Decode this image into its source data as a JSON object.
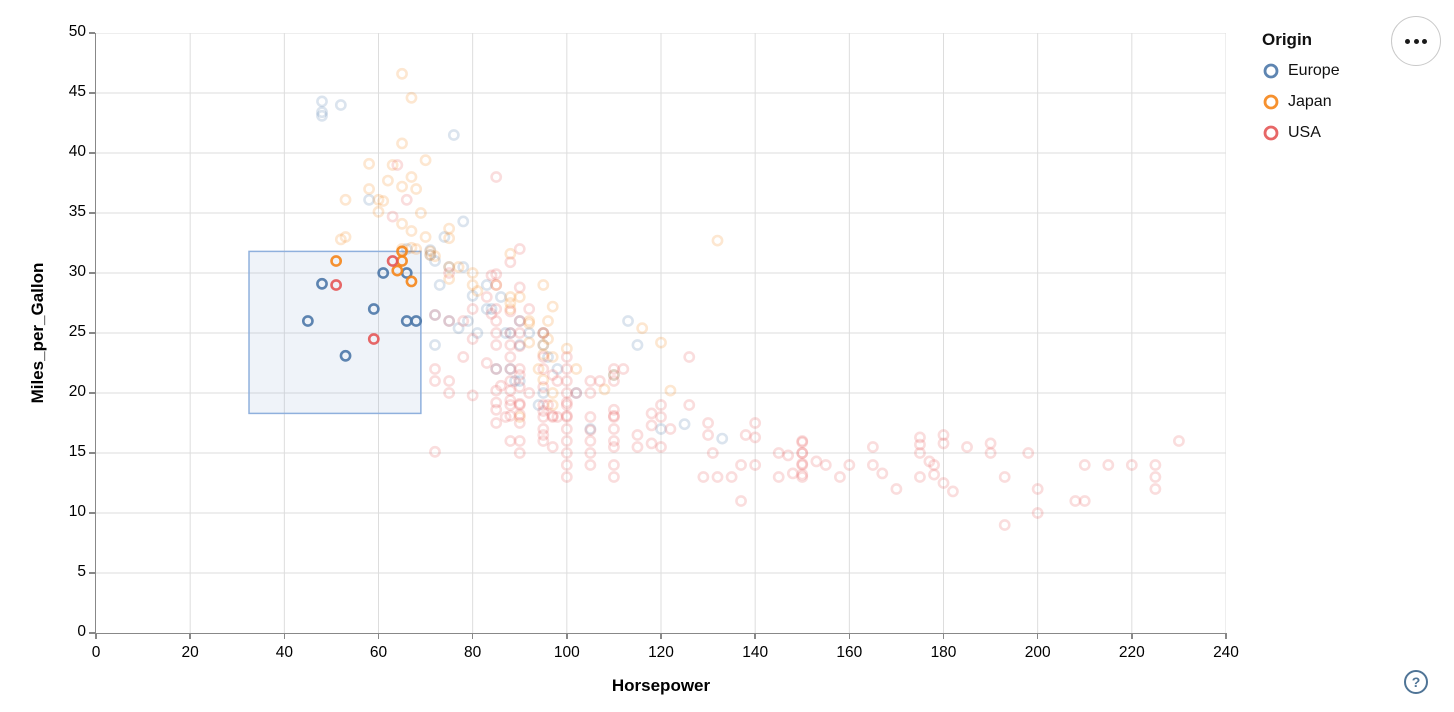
{
  "controls": {
    "menu_button": "options-menu",
    "help_button": "?"
  },
  "chart_data": {
    "type": "scatter",
    "title": "",
    "xlabel": "Horsepower",
    "ylabel": "Miles_per_Gallon",
    "x_domain": [
      0,
      240
    ],
    "y_domain": [
      0,
      50
    ],
    "x_ticks": [
      0,
      20,
      40,
      60,
      80,
      100,
      120,
      140,
      160,
      180,
      200,
      220,
      240
    ],
    "y_ticks": [
      0,
      5,
      10,
      15,
      20,
      25,
      30,
      35,
      40,
      45,
      50
    ],
    "grid": true,
    "legend": {
      "title": "Origin",
      "position": "top-right",
      "entries": [
        {
          "label": "Europe",
          "color": "#4c78a8"
        },
        {
          "label": "Japan",
          "color": "#f58518"
        },
        {
          "label": "USA",
          "color": "#e45756"
        }
      ]
    },
    "brush": {
      "x": [
        32.5,
        69
      ],
      "y": [
        18.3,
        31.8
      ],
      "fill": "#7d9fd0",
      "fill_opacity": 0.12,
      "stroke": "#8fb0dd"
    },
    "point_style": {
      "faded_opacity": 0.2,
      "selected_opacity": 0.9,
      "radius": 4.6,
      "stroke_width": 2.6
    },
    "series": [
      {
        "name": "Europe",
        "color": "#4c78a8",
        "selected_points": [
          [
            45,
            26
          ],
          [
            48,
            29.1
          ],
          [
            53,
            23.1
          ],
          [
            59,
            27
          ],
          [
            61,
            30
          ],
          [
            66,
            30
          ],
          [
            66,
            26
          ],
          [
            68,
            26
          ]
        ],
        "points": [
          [
            48,
            44.3
          ],
          [
            48,
            43.4
          ],
          [
            48,
            43.1
          ],
          [
            52,
            44
          ],
          [
            76,
            41.5
          ],
          [
            58,
            36.1
          ],
          [
            66,
            32
          ],
          [
            71,
            31.5
          ],
          [
            71,
            31.9
          ],
          [
            72,
            31
          ],
          [
            78,
            34.3
          ],
          [
            78,
            30.5
          ],
          [
            74,
            33
          ],
          [
            75,
            30.5
          ],
          [
            77,
            25.4
          ],
          [
            80,
            28.1
          ],
          [
            83,
            29
          ],
          [
            83,
            27
          ],
          [
            86,
            28
          ],
          [
            87,
            25
          ],
          [
            88,
            25
          ],
          [
            88,
            22
          ],
          [
            90,
            24
          ],
          [
            90,
            26
          ],
          [
            90,
            21
          ],
          [
            92,
            25
          ],
          [
            95,
            25
          ],
          [
            95,
            24
          ],
          [
            95,
            20
          ],
          [
            96,
            23
          ],
          [
            98,
            22
          ],
          [
            102,
            20
          ],
          [
            105,
            17
          ],
          [
            110,
            21.5
          ],
          [
            113,
            26
          ],
          [
            115,
            24
          ],
          [
            120,
            17
          ],
          [
            125,
            17.4
          ],
          [
            133,
            16.2
          ],
          [
            72,
            26.5
          ],
          [
            72,
            24
          ],
          [
            73,
            29
          ],
          [
            75,
            26
          ],
          [
            79,
            26
          ],
          [
            81,
            25
          ],
          [
            84,
            27
          ],
          [
            85,
            22
          ],
          [
            89,
            21
          ],
          [
            94,
            19
          ]
        ]
      },
      {
        "name": "Japan",
        "color": "#f58518",
        "selected_points": [
          [
            51,
            31
          ],
          [
            65,
            31.8
          ],
          [
            65,
            31
          ],
          [
            64,
            30.2
          ],
          [
            67,
            29.3
          ]
        ],
        "points": [
          [
            65,
            46.6
          ],
          [
            67,
            44.6
          ],
          [
            65,
            40.8
          ],
          [
            70,
            39.4
          ],
          [
            58,
            39.1
          ],
          [
            63,
            39
          ],
          [
            67,
            38
          ],
          [
            62,
            37.7
          ],
          [
            68,
            37
          ],
          [
            65,
            37.2
          ],
          [
            53,
            36.1
          ],
          [
            60,
            36.1
          ],
          [
            58,
            37
          ],
          [
            61,
            36
          ],
          [
            75,
            33.7
          ],
          [
            60,
            35.1
          ],
          [
            65,
            34.1
          ],
          [
            67,
            33.5
          ],
          [
            53,
            33
          ],
          [
            65,
            32
          ],
          [
            69,
            35
          ],
          [
            52,
            32.8
          ],
          [
            70,
            33
          ],
          [
            75,
            32.9
          ],
          [
            71,
            31.8
          ],
          [
            67,
            32.1
          ],
          [
            71,
            31.5
          ],
          [
            72,
            31.4
          ],
          [
            68,
            32
          ],
          [
            88,
            27
          ],
          [
            88,
            27.5
          ],
          [
            88,
            28
          ],
          [
            90,
            28
          ],
          [
            92,
            26
          ],
          [
            92,
            25.8
          ],
          [
            92,
            24.2
          ],
          [
            94,
            22
          ],
          [
            95,
            24
          ],
          [
            95,
            25
          ],
          [
            95,
            23.2
          ],
          [
            96,
            24.5
          ],
          [
            96,
            26
          ],
          [
            97,
            23
          ],
          [
            97,
            27.2
          ],
          [
            97,
            19
          ],
          [
            90,
            18
          ],
          [
            100,
            23.7
          ],
          [
            110,
            21.5
          ],
          [
            116,
            25.4
          ],
          [
            120,
            24.2
          ],
          [
            122,
            20.2
          ],
          [
            132,
            32.7
          ],
          [
            75,
            29.5
          ],
          [
            75,
            30.5
          ],
          [
            77,
            30.5
          ],
          [
            80,
            29
          ],
          [
            80,
            30
          ],
          [
            81,
            28.5
          ],
          [
            85,
            29
          ],
          [
            88,
            31.6
          ],
          [
            95,
            21.1
          ],
          [
            97,
            20
          ],
          [
            108,
            20.3
          ],
          [
            95,
            29
          ],
          [
            102,
            22
          ]
        ]
      },
      {
        "name": "USA",
        "color": "#e45756",
        "selected_points": [
          [
            51,
            29
          ],
          [
            63,
            31
          ],
          [
            59,
            24.5
          ]
        ],
        "points": [
          [
            85,
            38
          ],
          [
            63,
            34.7
          ],
          [
            66,
            36.1
          ],
          [
            64,
            39
          ],
          [
            90,
            32
          ],
          [
            88,
            30.9
          ],
          [
            85,
            29.9
          ],
          [
            90,
            28.8
          ],
          [
            84,
            29.8
          ],
          [
            75,
            30
          ],
          [
            72,
            26.5
          ],
          [
            75,
            26
          ],
          [
            78,
            26
          ],
          [
            80,
            27
          ],
          [
            83,
            28
          ],
          [
            85,
            25
          ],
          [
            85,
            26
          ],
          [
            85,
            27
          ],
          [
            85,
            29
          ],
          [
            88,
            25
          ],
          [
            88,
            26.8
          ],
          [
            90,
            25
          ],
          [
            90,
            26
          ],
          [
            92,
            27
          ],
          [
            95,
            25
          ],
          [
            84,
            26.6
          ],
          [
            72,
            21
          ],
          [
            72,
            22
          ],
          [
            75,
            20
          ],
          [
            75,
            21
          ],
          [
            78,
            23
          ],
          [
            80,
            19.8
          ],
          [
            80,
            24.5
          ],
          [
            83,
            22.5
          ],
          [
            85,
            20.2
          ],
          [
            85,
            22
          ],
          [
            85,
            24
          ],
          [
            86,
            20.6
          ],
          [
            88,
            20.2
          ],
          [
            88,
            21
          ],
          [
            88,
            22
          ],
          [
            88,
            23
          ],
          [
            88,
            24
          ],
          [
            90,
            20.5
          ],
          [
            90,
            21.5
          ],
          [
            90,
            22
          ],
          [
            90,
            23.9
          ],
          [
            92,
            20
          ],
          [
            95,
            20.5
          ],
          [
            95,
            22
          ],
          [
            95,
            23
          ],
          [
            97,
            21.5
          ],
          [
            98,
            21
          ],
          [
            100,
            20
          ],
          [
            100,
            21
          ],
          [
            100,
            22
          ],
          [
            100,
            23
          ],
          [
            102,
            20
          ],
          [
            105,
            20
          ],
          [
            105,
            21
          ],
          [
            107,
            21
          ],
          [
            110,
            21
          ],
          [
            110,
            22
          ],
          [
            112,
            22
          ],
          [
            126,
            23
          ],
          [
            85,
            18.6
          ],
          [
            85,
            19.2
          ],
          [
            87,
            18
          ],
          [
            88,
            18.1
          ],
          [
            88,
            19
          ],
          [
            88,
            19.4
          ],
          [
            90,
            18.2
          ],
          [
            90,
            19
          ],
          [
            90,
            19.1
          ],
          [
            95,
            18
          ],
          [
            95,
            18.5
          ],
          [
            95,
            19
          ],
          [
            96,
            19
          ],
          [
            97,
            18
          ],
          [
            97,
            18.1
          ],
          [
            98,
            18
          ],
          [
            100,
            18
          ],
          [
            100,
            18.1
          ],
          [
            100,
            19
          ],
          [
            100,
            19.2
          ],
          [
            105,
            18
          ],
          [
            110,
            18
          ],
          [
            110,
            18.1
          ],
          [
            110,
            18.6
          ],
          [
            118,
            18.3
          ],
          [
            120,
            18
          ],
          [
            120,
            19
          ],
          [
            126,
            19
          ],
          [
            88,
            16
          ],
          [
            90,
            15
          ],
          [
            90,
            16
          ],
          [
            90,
            17.5
          ],
          [
            85,
            17.5
          ],
          [
            95,
            16
          ],
          [
            95,
            16.5
          ],
          [
            95,
            17
          ],
          [
            97,
            15.5
          ],
          [
            100,
            15
          ],
          [
            100,
            16
          ],
          [
            100,
            17
          ],
          [
            105,
            15
          ],
          [
            105,
            16
          ],
          [
            105,
            16.9
          ],
          [
            110,
            15.5
          ],
          [
            110,
            16
          ],
          [
            110,
            17
          ],
          [
            115,
            15.5
          ],
          [
            115,
            16.5
          ],
          [
            118,
            17.3
          ],
          [
            118,
            15.8
          ],
          [
            120,
            15.5
          ],
          [
            122,
            17
          ],
          [
            130,
            17.5
          ],
          [
            72,
            15.1
          ],
          [
            130,
            16.5
          ],
          [
            138,
            16.5
          ],
          [
            140,
            16.3
          ],
          [
            140,
            17.5
          ],
          [
            100,
            14
          ],
          [
            100,
            13
          ],
          [
            105,
            14
          ],
          [
            110,
            14
          ],
          [
            110,
            13
          ],
          [
            129,
            13
          ],
          [
            132,
            13
          ],
          [
            135,
            13
          ],
          [
            137,
            14
          ],
          [
            140,
            14
          ],
          [
            131,
            15
          ],
          [
            137,
            11
          ],
          [
            145,
            15
          ],
          [
            145,
            13
          ],
          [
            147,
            14.8
          ],
          [
            148,
            13.3
          ],
          [
            150,
            16
          ],
          [
            150,
            15.9
          ],
          [
            150,
            15
          ],
          [
            150,
            15
          ],
          [
            150,
            14.1
          ],
          [
            150,
            14
          ],
          [
            150,
            13.2
          ],
          [
            150,
            13
          ],
          [
            153,
            14.3
          ],
          [
            155,
            14
          ],
          [
            158,
            13
          ],
          [
            160,
            14
          ],
          [
            165,
            15.5
          ],
          [
            165,
            14
          ],
          [
            167,
            13.3
          ],
          [
            170,
            12
          ],
          [
            175,
            13
          ],
          [
            175,
            16.3
          ],
          [
            175,
            15.7
          ],
          [
            175,
            15
          ],
          [
            177,
            14.3
          ],
          [
            178,
            14
          ],
          [
            178,
            13.2
          ],
          [
            180,
            12.5
          ],
          [
            182,
            11.8
          ],
          [
            180,
            16.5
          ],
          [
            180,
            15.8
          ],
          [
            185,
            15.5
          ],
          [
            190,
            15.8
          ],
          [
            190,
            15
          ],
          [
            193,
            13
          ],
          [
            198,
            15
          ],
          [
            200,
            12
          ],
          [
            200,
            10
          ],
          [
            193,
            9
          ],
          [
            208,
            11
          ],
          [
            210,
            11
          ],
          [
            210,
            14
          ],
          [
            215,
            14
          ],
          [
            220,
            14
          ],
          [
            225,
            14
          ],
          [
            225,
            13
          ],
          [
            225,
            12
          ],
          [
            230,
            16
          ]
        ]
      }
    ]
  }
}
